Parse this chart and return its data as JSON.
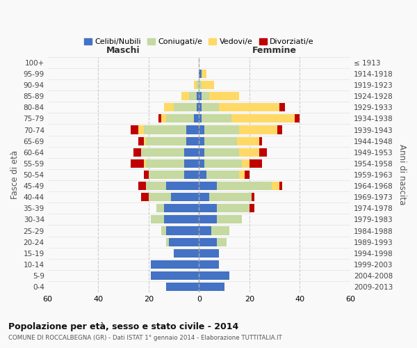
{
  "age_groups": [
    "0-4",
    "5-9",
    "10-14",
    "15-19",
    "20-24",
    "25-29",
    "30-34",
    "35-39",
    "40-44",
    "45-49",
    "50-54",
    "55-59",
    "60-64",
    "65-69",
    "70-74",
    "75-79",
    "80-84",
    "85-89",
    "90-94",
    "95-99",
    "100+"
  ],
  "birth_years": [
    "2009-2013",
    "2004-2008",
    "1999-2003",
    "1994-1998",
    "1989-1993",
    "1984-1988",
    "1979-1983",
    "1974-1978",
    "1969-1973",
    "1964-1968",
    "1959-1963",
    "1954-1958",
    "1949-1953",
    "1944-1948",
    "1939-1943",
    "1934-1938",
    "1929-1933",
    "1924-1928",
    "1919-1923",
    "1914-1918",
    "≤ 1913"
  ],
  "maschi": {
    "celibi": [
      13,
      19,
      19,
      10,
      12,
      13,
      14,
      14,
      11,
      13,
      6,
      6,
      6,
      5,
      5,
      2,
      1,
      1,
      0,
      0,
      0
    ],
    "coniugati": [
      0,
      0,
      0,
      0,
      1,
      2,
      5,
      3,
      9,
      8,
      14,
      15,
      17,
      16,
      17,
      11,
      9,
      3,
      1,
      0,
      0
    ],
    "vedovi": [
      0,
      0,
      0,
      0,
      0,
      0,
      0,
      0,
      0,
      0,
      0,
      1,
      0,
      1,
      2,
      2,
      4,
      3,
      1,
      0,
      0
    ],
    "divorziati": [
      0,
      0,
      0,
      0,
      0,
      0,
      0,
      0,
      3,
      3,
      2,
      5,
      3,
      2,
      3,
      1,
      0,
      0,
      0,
      0,
      0
    ]
  },
  "femmine": {
    "nubili": [
      10,
      12,
      8,
      8,
      7,
      5,
      7,
      7,
      4,
      7,
      3,
      2,
      2,
      2,
      2,
      1,
      1,
      1,
      0,
      1,
      0
    ],
    "coniugate": [
      0,
      0,
      0,
      0,
      4,
      7,
      10,
      13,
      17,
      22,
      13,
      15,
      14,
      13,
      14,
      12,
      7,
      3,
      1,
      0,
      0
    ],
    "vedove": [
      0,
      0,
      0,
      0,
      0,
      0,
      0,
      0,
      0,
      3,
      2,
      3,
      8,
      9,
      15,
      25,
      24,
      12,
      5,
      2,
      0
    ],
    "divorziate": [
      0,
      0,
      0,
      0,
      0,
      0,
      0,
      2,
      1,
      1,
      2,
      5,
      3,
      1,
      2,
      2,
      2,
      0,
      0,
      0,
      0
    ]
  },
  "colors": {
    "celibi": "#4472C4",
    "coniugati": "#C5D9A0",
    "vedovi": "#FFD966",
    "divorziati": "#C00000"
  },
  "xlim": 60,
  "title": "Popolazione per età, sesso e stato civile - 2014",
  "subtitle": "COMUNE DI ROCCALBEGNA (GR) - Dati ISTAT 1° gennaio 2014 - Elaborazione TUTTITALIA.IT",
  "ylabel_left": "Fasce di età",
  "ylabel_right": "Anni di nascita",
  "xlabel_left": "Maschi",
  "xlabel_right": "Femmine",
  "legend_labels": [
    "Celibi/Nubili",
    "Coniugati/e",
    "Vedovi/e",
    "Divorziati/e"
  ],
  "bg_color": "#f9f9f9",
  "grid_color": "#cccccc",
  "bar_height": 0.75
}
